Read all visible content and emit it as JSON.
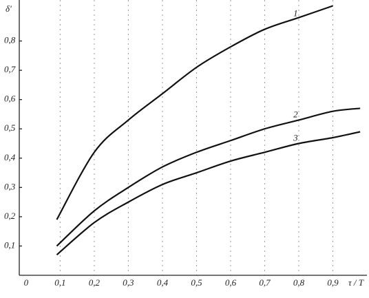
{
  "chart_data": {
    "type": "line",
    "y_label": "δ'",
    "x_label": "τ / T",
    "x": [
      0.09,
      0.2,
      0.3,
      0.4,
      0.5,
      0.6,
      0.7,
      0.8,
      0.9,
      0.98
    ],
    "series": [
      {
        "name": "1",
        "color": "#111111",
        "values": [
          0.19,
          0.42,
          0.53,
          0.62,
          0.71,
          0.78,
          0.84,
          0.88,
          0.92,
          null
        ]
      },
      {
        "name": "2",
        "color": "#111111",
        "values": [
          0.1,
          0.22,
          0.3,
          0.37,
          0.42,
          0.46,
          0.5,
          0.53,
          0.56,
          0.57
        ]
      },
      {
        "name": "3",
        "color": "#111111",
        "values": [
          0.07,
          0.18,
          0.25,
          0.31,
          0.35,
          0.39,
          0.42,
          0.45,
          0.47,
          0.49
        ]
      }
    ],
    "label_x": [
      0.76,
      0.76,
      0.76
    ],
    "xlim": [
      -0.02,
      1.0
    ],
    "ylim": [
      0,
      0.94
    ],
    "xticks": [
      0,
      {
        "value": 0.1,
        "label": "0,1"
      },
      {
        "value": 0.2,
        "label": "0,2"
      },
      {
        "value": 0.3,
        "label": "0,3"
      },
      {
        "value": 0.4,
        "label": "0,4"
      },
      {
        "value": 0.5,
        "label": "0,5"
      },
      {
        "value": 0.6,
        "label": "0,6"
      },
      {
        "value": 0.7,
        "label": "0,7"
      },
      {
        "value": 0.8,
        "label": "0,8"
      },
      {
        "value": 0.9,
        "label": "0,9"
      }
    ],
    "yticks": [
      {
        "value": 0.1,
        "label": "0,1"
      },
      {
        "value": 0.2,
        "label": "0,2"
      },
      {
        "value": 0.3,
        "label": "0,3"
      },
      {
        "value": 0.4,
        "label": "0,4"
      },
      {
        "value": 0.5,
        "label": "0,5"
      },
      {
        "value": 0.6,
        "label": "0,6"
      },
      {
        "value": 0.7,
        "label": "0,7"
      },
      {
        "value": 0.8,
        "label": "0,8"
      }
    ],
    "grid": true
  }
}
